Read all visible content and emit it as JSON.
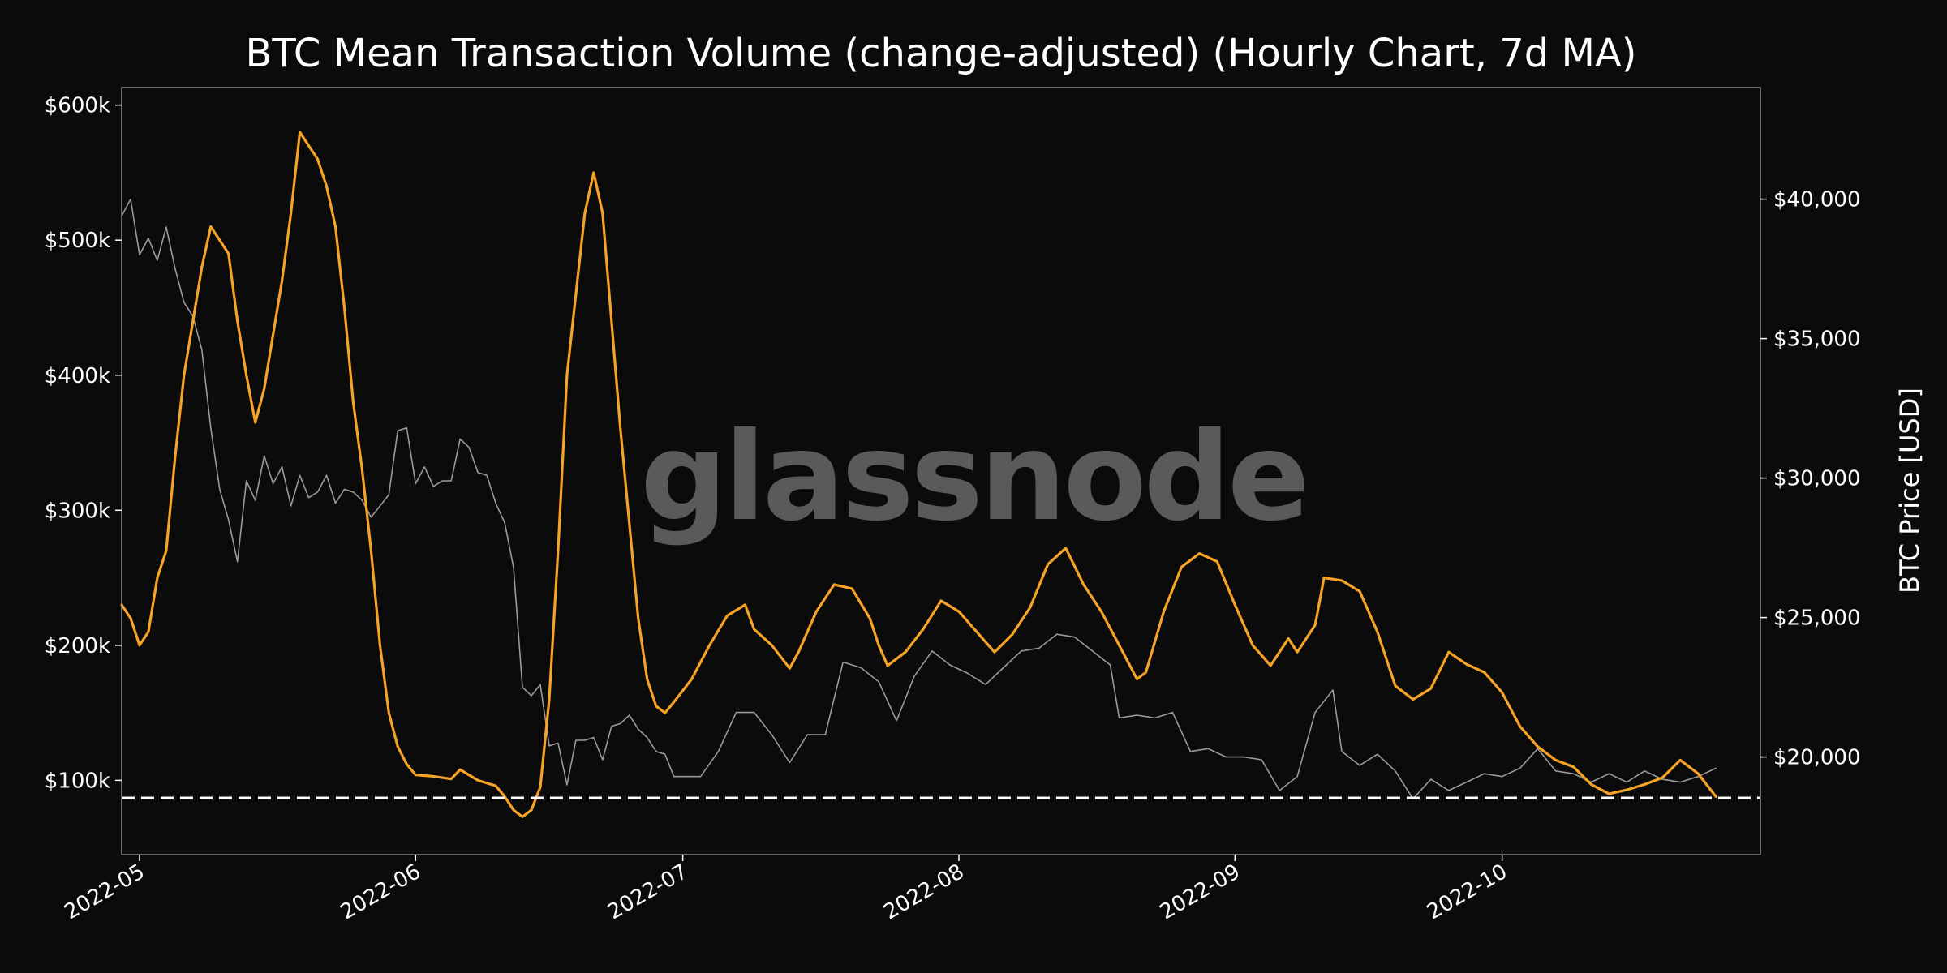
{
  "chart_data": {
    "type": "line",
    "title": "BTC Mean Transaction Volume (change-adjusted) (Hourly Chart, 7d MA)",
    "watermark": "glassnode",
    "y_left": {
      "label": "",
      "ticks": [
        {
          "value": 100000,
          "label": "$100k"
        },
        {
          "value": 200000,
          "label": "$200k"
        },
        {
          "value": 300000,
          "label": "$300k"
        },
        {
          "value": 400000,
          "label": "$400k"
        },
        {
          "value": 500000,
          "label": "$500k"
        },
        {
          "value": 600000,
          "label": "$600k"
        }
      ],
      "range": [
        45000,
        613000
      ]
    },
    "y_right": {
      "label": "BTC Price [USD]",
      "ticks": [
        {
          "value": 20000,
          "label": "$20,000"
        },
        {
          "value": 25000,
          "label": "$25,000"
        },
        {
          "value": 30000,
          "label": "$30,000"
        },
        {
          "value": 35000,
          "label": "$35,000"
        },
        {
          "value": 40000,
          "label": "$40,000"
        }
      ],
      "range": [
        16500,
        44000
      ]
    },
    "x_axis": {
      "range": [
        "2022-04-29",
        "2022-10-30"
      ],
      "ticks": [
        {
          "date": "2022-05-01",
          "label": "2022-05"
        },
        {
          "date": "2022-06-01",
          "label": "2022-06"
        },
        {
          "date": "2022-07-01",
          "label": "2022-07"
        },
        {
          "date": "2022-08-01",
          "label": "2022-08"
        },
        {
          "date": "2022-09-01",
          "label": "2022-09"
        },
        {
          "date": "2022-10-01",
          "label": "2022-10"
        }
      ]
    },
    "reference_line": {
      "value": 87000,
      "style": "dashed",
      "color": "#ffffff"
    },
    "grid": false,
    "colors": {
      "background": "#0b0b0b",
      "volume": "#f7a325",
      "price": "#9a9a9a",
      "frame": "#8a8a8a",
      "text": "#ffffff"
    },
    "series": [
      {
        "name": "",
        "axis": "left",
        "color": "#f7a325",
        "points": [
          [
            "2022-04-29",
            230000
          ],
          [
            "2022-04-30",
            220000
          ],
          [
            "2022-05-01",
            200000
          ],
          [
            "2022-05-02",
            210000
          ],
          [
            "2022-05-03",
            250000
          ],
          [
            "2022-05-04",
            270000
          ],
          [
            "2022-05-05",
            340000
          ],
          [
            "2022-05-06",
            400000
          ],
          [
            "2022-05-07",
            440000
          ],
          [
            "2022-05-08",
            480000
          ],
          [
            "2022-05-09",
            510000
          ],
          [
            "2022-05-10",
            500000
          ],
          [
            "2022-05-11",
            490000
          ],
          [
            "2022-05-12",
            440000
          ],
          [
            "2022-05-13",
            400000
          ],
          [
            "2022-05-14",
            365000
          ],
          [
            "2022-05-15",
            390000
          ],
          [
            "2022-05-16",
            430000
          ],
          [
            "2022-05-17",
            470000
          ],
          [
            "2022-05-18",
            520000
          ],
          [
            "2022-05-19",
            580000
          ],
          [
            "2022-05-20",
            570000
          ],
          [
            "2022-05-21",
            560000
          ],
          [
            "2022-05-22",
            540000
          ],
          [
            "2022-05-23",
            510000
          ],
          [
            "2022-05-24",
            450000
          ],
          [
            "2022-05-25",
            380000
          ],
          [
            "2022-05-26",
            330000
          ],
          [
            "2022-05-27",
            270000
          ],
          [
            "2022-05-28",
            200000
          ],
          [
            "2022-05-29",
            150000
          ],
          [
            "2022-05-30",
            125000
          ],
          [
            "2022-05-31",
            112000
          ],
          [
            "2022-06-01",
            104000
          ],
          [
            "2022-06-03",
            103000
          ],
          [
            "2022-06-05",
            101000
          ],
          [
            "2022-06-06",
            108000
          ],
          [
            "2022-06-08",
            100000
          ],
          [
            "2022-06-10",
            96000
          ],
          [
            "2022-06-11",
            88000
          ],
          [
            "2022-06-12",
            78000
          ],
          [
            "2022-06-13",
            73000
          ],
          [
            "2022-06-14",
            78000
          ],
          [
            "2022-06-15",
            95000
          ],
          [
            "2022-06-16",
            160000
          ],
          [
            "2022-06-17",
            270000
          ],
          [
            "2022-06-18",
            400000
          ],
          [
            "2022-06-19",
            460000
          ],
          [
            "2022-06-20",
            520000
          ],
          [
            "2022-06-21",
            550000
          ],
          [
            "2022-06-22",
            520000
          ],
          [
            "2022-06-23",
            440000
          ],
          [
            "2022-06-24",
            360000
          ],
          [
            "2022-06-25",
            290000
          ],
          [
            "2022-06-26",
            220000
          ],
          [
            "2022-06-27",
            175000
          ],
          [
            "2022-06-28",
            155000
          ],
          [
            "2022-06-29",
            150000
          ],
          [
            "2022-06-30",
            158000
          ],
          [
            "2022-07-02",
            175000
          ],
          [
            "2022-07-04",
            200000
          ],
          [
            "2022-07-06",
            222000
          ],
          [
            "2022-07-08",
            230000
          ],
          [
            "2022-07-09",
            212000
          ],
          [
            "2022-07-11",
            200000
          ],
          [
            "2022-07-13",
            183000
          ],
          [
            "2022-07-14",
            195000
          ],
          [
            "2022-07-16",
            225000
          ],
          [
            "2022-07-18",
            245000
          ],
          [
            "2022-07-20",
            242000
          ],
          [
            "2022-07-22",
            220000
          ],
          [
            "2022-07-23",
            200000
          ],
          [
            "2022-07-24",
            185000
          ],
          [
            "2022-07-26",
            195000
          ],
          [
            "2022-07-28",
            212000
          ],
          [
            "2022-07-30",
            233000
          ],
          [
            "2022-08-01",
            225000
          ],
          [
            "2022-08-03",
            210000
          ],
          [
            "2022-08-05",
            195000
          ],
          [
            "2022-08-07",
            208000
          ],
          [
            "2022-08-09",
            228000
          ],
          [
            "2022-08-11",
            260000
          ],
          [
            "2022-08-13",
            272000
          ],
          [
            "2022-08-15",
            245000
          ],
          [
            "2022-08-17",
            225000
          ],
          [
            "2022-08-19",
            200000
          ],
          [
            "2022-08-21",
            175000
          ],
          [
            "2022-08-22",
            180000
          ],
          [
            "2022-08-24",
            225000
          ],
          [
            "2022-08-26",
            258000
          ],
          [
            "2022-08-28",
            268000
          ],
          [
            "2022-08-30",
            262000
          ],
          [
            "2022-09-01",
            230000
          ],
          [
            "2022-09-03",
            200000
          ],
          [
            "2022-09-05",
            185000
          ],
          [
            "2022-09-07",
            205000
          ],
          [
            "2022-09-08",
            195000
          ],
          [
            "2022-09-10",
            215000
          ],
          [
            "2022-09-11",
            250000
          ],
          [
            "2022-09-13",
            248000
          ],
          [
            "2022-09-15",
            240000
          ],
          [
            "2022-09-17",
            210000
          ],
          [
            "2022-09-19",
            170000
          ],
          [
            "2022-09-21",
            160000
          ],
          [
            "2022-09-23",
            168000
          ],
          [
            "2022-09-25",
            195000
          ],
          [
            "2022-09-27",
            186000
          ],
          [
            "2022-09-29",
            180000
          ],
          [
            "2022-10-01",
            165000
          ],
          [
            "2022-10-03",
            140000
          ],
          [
            "2022-10-05",
            125000
          ],
          [
            "2022-10-07",
            115000
          ],
          [
            "2022-10-09",
            110000
          ],
          [
            "2022-10-11",
            97000
          ],
          [
            "2022-10-13",
            90000
          ],
          [
            "2022-10-15",
            93000
          ],
          [
            "2022-10-17",
            97000
          ],
          [
            "2022-10-19",
            102000
          ],
          [
            "2022-10-21",
            115000
          ],
          [
            "2022-10-23",
            105000
          ],
          [
            "2022-10-25",
            88000
          ]
        ]
      },
      {
        "name": "",
        "axis": "right",
        "color": "#9a9a9a",
        "points": [
          [
            "2022-04-29",
            39400
          ],
          [
            "2022-04-30",
            40000
          ],
          [
            "2022-05-01",
            38000
          ],
          [
            "2022-05-02",
            38600
          ],
          [
            "2022-05-03",
            37800
          ],
          [
            "2022-05-04",
            39000
          ],
          [
            "2022-05-05",
            37500
          ],
          [
            "2022-05-06",
            36300
          ],
          [
            "2022-05-07",
            35800
          ],
          [
            "2022-05-08",
            34600
          ],
          [
            "2022-05-09",
            31800
          ],
          [
            "2022-05-10",
            29600
          ],
          [
            "2022-05-11",
            28500
          ],
          [
            "2022-05-12",
            27000
          ],
          [
            "2022-05-13",
            29900
          ],
          [
            "2022-05-14",
            29200
          ],
          [
            "2022-05-15",
            30800
          ],
          [
            "2022-05-16",
            29800
          ],
          [
            "2022-05-17",
            30400
          ],
          [
            "2022-05-18",
            29000
          ],
          [
            "2022-05-19",
            30100
          ],
          [
            "2022-05-20",
            29300
          ],
          [
            "2022-05-21",
            29500
          ],
          [
            "2022-05-22",
            30100
          ],
          [
            "2022-05-23",
            29100
          ],
          [
            "2022-05-24",
            29600
          ],
          [
            "2022-05-25",
            29500
          ],
          [
            "2022-05-26",
            29200
          ],
          [
            "2022-05-27",
            28600
          ],
          [
            "2022-05-28",
            29000
          ],
          [
            "2022-05-29",
            29400
          ],
          [
            "2022-05-30",
            31700
          ],
          [
            "2022-05-31",
            31800
          ],
          [
            "2022-06-01",
            29800
          ],
          [
            "2022-06-02",
            30400
          ],
          [
            "2022-06-03",
            29700
          ],
          [
            "2022-06-04",
            29900
          ],
          [
            "2022-06-05",
            29900
          ],
          [
            "2022-06-06",
            31400
          ],
          [
            "2022-06-07",
            31100
          ],
          [
            "2022-06-08",
            30200
          ],
          [
            "2022-06-09",
            30100
          ],
          [
            "2022-06-10",
            29100
          ],
          [
            "2022-06-11",
            28400
          ],
          [
            "2022-06-12",
            26800
          ],
          [
            "2022-06-13",
            22500
          ],
          [
            "2022-06-14",
            22200
          ],
          [
            "2022-06-15",
            22600
          ],
          [
            "2022-06-16",
            20400
          ],
          [
            "2022-06-17",
            20500
          ],
          [
            "2022-06-18",
            19000
          ],
          [
            "2022-06-19",
            20600
          ],
          [
            "2022-06-20",
            20600
          ],
          [
            "2022-06-21",
            20700
          ],
          [
            "2022-06-22",
            19900
          ],
          [
            "2022-06-23",
            21100
          ],
          [
            "2022-06-24",
            21200
          ],
          [
            "2022-06-25",
            21500
          ],
          [
            "2022-06-26",
            21000
          ],
          [
            "2022-06-27",
            20700
          ],
          [
            "2022-06-28",
            20200
          ],
          [
            "2022-06-29",
            20100
          ],
          [
            "2022-06-30",
            19300
          ],
          [
            "2022-07-01",
            19300
          ],
          [
            "2022-07-03",
            19300
          ],
          [
            "2022-07-05",
            20200
          ],
          [
            "2022-07-07",
            21600
          ],
          [
            "2022-07-09",
            21600
          ],
          [
            "2022-07-11",
            20800
          ],
          [
            "2022-07-13",
            19800
          ],
          [
            "2022-07-15",
            20800
          ],
          [
            "2022-07-17",
            20800
          ],
          [
            "2022-07-19",
            23400
          ],
          [
            "2022-07-21",
            23200
          ],
          [
            "2022-07-23",
            22700
          ],
          [
            "2022-07-25",
            21300
          ],
          [
            "2022-07-27",
            22900
          ],
          [
            "2022-07-29",
            23800
          ],
          [
            "2022-07-31",
            23300
          ],
          [
            "2022-08-02",
            23000
          ],
          [
            "2022-08-04",
            22600
          ],
          [
            "2022-08-06",
            23200
          ],
          [
            "2022-08-08",
            23800
          ],
          [
            "2022-08-10",
            23900
          ],
          [
            "2022-08-12",
            24400
          ],
          [
            "2022-08-14",
            24300
          ],
          [
            "2022-08-16",
            23800
          ],
          [
            "2022-08-18",
            23300
          ],
          [
            "2022-08-19",
            21400
          ],
          [
            "2022-08-21",
            21500
          ],
          [
            "2022-08-23",
            21400
          ],
          [
            "2022-08-25",
            21600
          ],
          [
            "2022-08-27",
            20200
          ],
          [
            "2022-08-29",
            20300
          ],
          [
            "2022-08-31",
            20000
          ],
          [
            "2022-09-02",
            20000
          ],
          [
            "2022-09-04",
            19900
          ],
          [
            "2022-09-06",
            18800
          ],
          [
            "2022-09-08",
            19300
          ],
          [
            "2022-09-10",
            21600
          ],
          [
            "2022-09-12",
            22400
          ],
          [
            "2022-09-13",
            20200
          ],
          [
            "2022-09-15",
            19700
          ],
          [
            "2022-09-17",
            20100
          ],
          [
            "2022-09-19",
            19500
          ],
          [
            "2022-09-21",
            18500
          ],
          [
            "2022-09-23",
            19200
          ],
          [
            "2022-09-25",
            18800
          ],
          [
            "2022-09-27",
            19100
          ],
          [
            "2022-09-29",
            19400
          ],
          [
            "2022-10-01",
            19300
          ],
          [
            "2022-10-03",
            19600
          ],
          [
            "2022-10-05",
            20300
          ],
          [
            "2022-10-07",
            19500
          ],
          [
            "2022-10-09",
            19400
          ],
          [
            "2022-10-11",
            19100
          ],
          [
            "2022-10-13",
            19400
          ],
          [
            "2022-10-15",
            19100
          ],
          [
            "2022-10-17",
            19500
          ],
          [
            "2022-10-19",
            19200
          ],
          [
            "2022-10-21",
            19100
          ],
          [
            "2022-10-23",
            19300
          ],
          [
            "2022-10-25",
            19600
          ]
        ]
      }
    ]
  }
}
